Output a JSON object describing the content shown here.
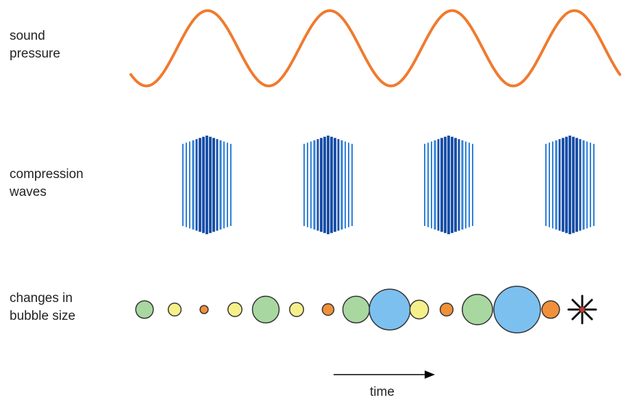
{
  "labels": {
    "sound_pressure": [
      "sound",
      "pressure"
    ],
    "compression_waves": [
      "compression",
      "waves"
    ],
    "bubble_size": [
      "changes in",
      "bubble size"
    ],
    "time": "time"
  },
  "colors": {
    "pressure_wave": "#f07a2e",
    "compression_light": "#2e7fd6",
    "compression_dark": "#1a4fa8",
    "bubble_green": "#a8d8a0",
    "bubble_yellow": "#f5f08a",
    "bubble_orange": "#f0903a",
    "bubble_blue": "#7cc0f0",
    "collapse_core": "#c0392b",
    "arrow": "#000000"
  },
  "wave_peaks": 4,
  "compression_groups": 4,
  "bubbles": [
    {
      "name": "bubble-1",
      "color": "green",
      "size": 1.5
    },
    {
      "name": "bubble-2",
      "color": "yellow",
      "size": 1.1
    },
    {
      "name": "bubble-3",
      "color": "orange",
      "size": 0.7
    },
    {
      "name": "bubble-4",
      "color": "yellow",
      "size": 1.2
    },
    {
      "name": "bubble-5",
      "color": "green",
      "size": 2.3
    },
    {
      "name": "bubble-6",
      "color": "yellow",
      "size": 1.2
    },
    {
      "name": "bubble-7",
      "color": "orange",
      "size": 1.0
    },
    {
      "name": "bubble-8",
      "color": "green",
      "size": 2.3
    },
    {
      "name": "bubble-9",
      "color": "blue",
      "size": 3.5
    },
    {
      "name": "bubble-10",
      "color": "yellow",
      "size": 1.6
    },
    {
      "name": "bubble-11",
      "color": "orange",
      "size": 1.1
    },
    {
      "name": "bubble-12",
      "color": "green",
      "size": 2.6
    },
    {
      "name": "bubble-13",
      "color": "blue",
      "size": 4.0
    },
    {
      "name": "bubble-14",
      "color": "orange",
      "size": 1.5
    }
  ],
  "collapse_icon": "starburst-icon"
}
